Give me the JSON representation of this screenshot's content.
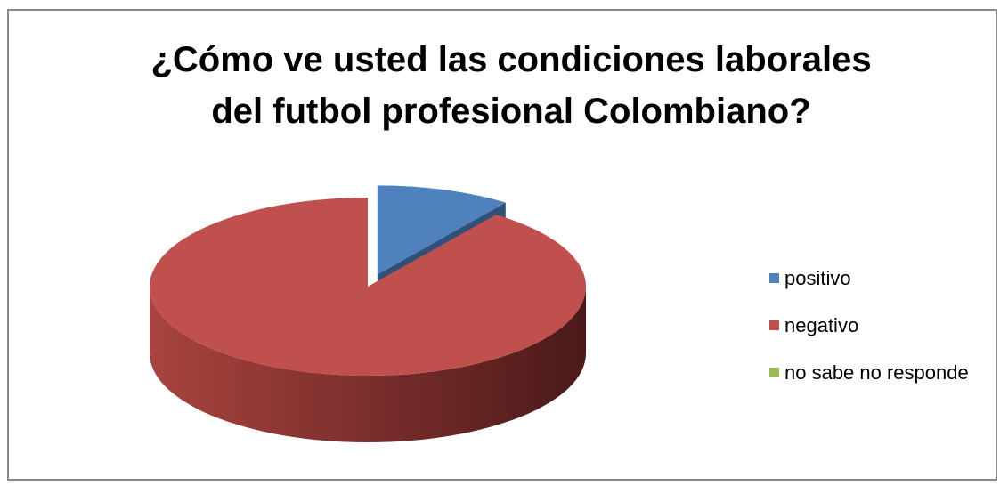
{
  "chart_data": {
    "type": "pie",
    "title": "¿Cómo ve usted las condiciones laborales\ndel futbol profesional Colombiano?",
    "categories": [
      "positivo",
      "negativo",
      "no sabe no responde"
    ],
    "values": [
      10,
      90,
      0
    ],
    "colors": [
      "#4F81BD",
      "#C0504D",
      "#9BBB59"
    ],
    "style": "3d-exploded",
    "legend_position": "right"
  }
}
